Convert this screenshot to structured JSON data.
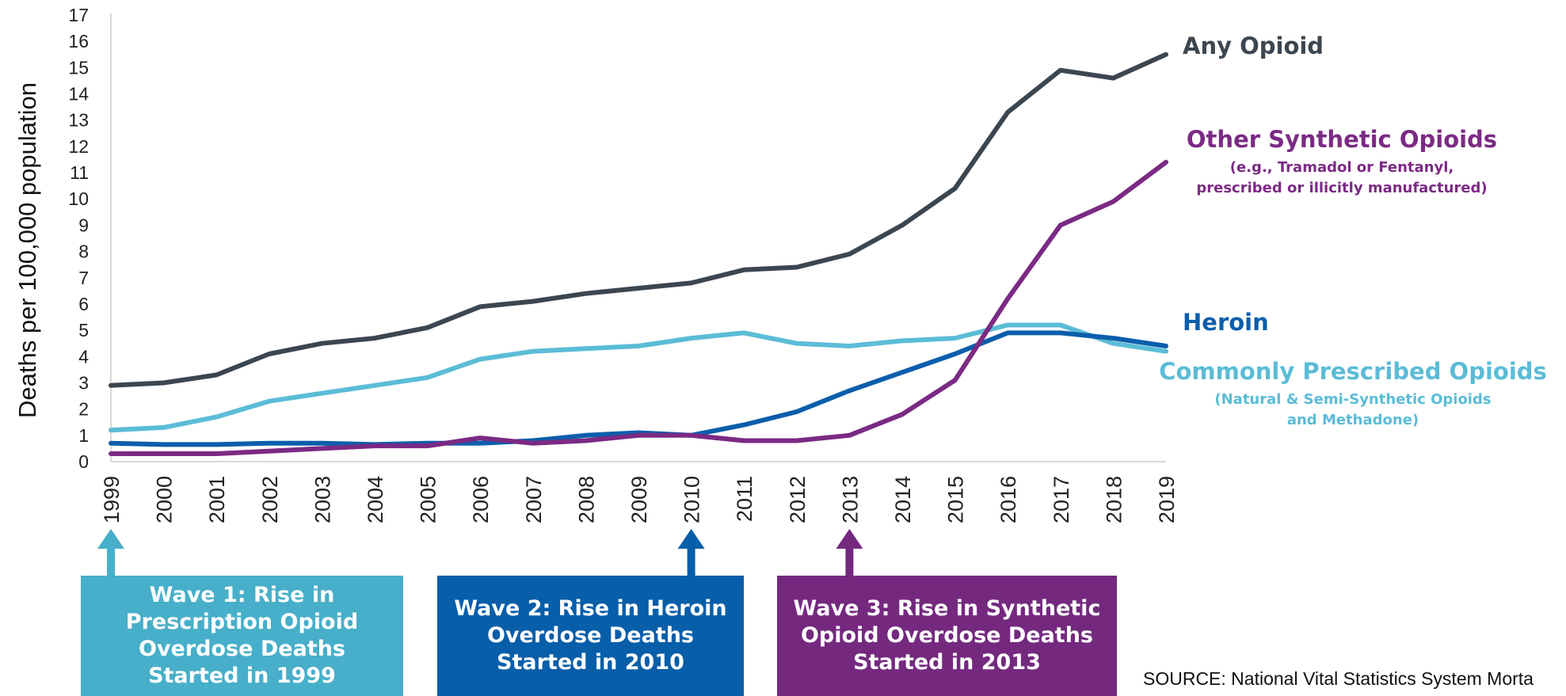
{
  "chart_data": {
    "type": "line",
    "ylabel": "Deaths per 100,000 population",
    "xlabel": "",
    "ylim": [
      0,
      17
    ],
    "yticks": [
      "0",
      "1",
      "2",
      "3",
      "4",
      "5",
      "6",
      "7",
      "8",
      "9",
      "10",
      "11",
      "12",
      "13",
      "14",
      "15",
      "16",
      "17"
    ],
    "x": [
      "1999",
      "2000",
      "2001",
      "2002",
      "2003",
      "2004",
      "2005",
      "2006",
      "2007",
      "2008",
      "2009",
      "2010",
      "2011",
      "2012",
      "2013",
      "2014",
      "2015",
      "2016",
      "2017",
      "2018",
      "2019"
    ],
    "grid": false,
    "series": [
      {
        "name": "Any Opioid",
        "subtitle": "",
        "color": "#3b4650",
        "values": [
          2.9,
          3.0,
          3.3,
          4.1,
          4.5,
          4.7,
          5.1,
          5.9,
          6.1,
          6.4,
          6.6,
          6.8,
          7.3,
          7.4,
          7.9,
          9.0,
          10.4,
          13.3,
          14.9,
          14.6,
          15.5
        ]
      },
      {
        "name": "Other Synthetic Opioids",
        "subtitle": "(e.g., Tramadol or Fentanyl,",
        "subtitle2": "prescribed or illicitly manufactured)",
        "color": "#7b2a84",
        "values": [
          0.3,
          0.3,
          0.3,
          0.4,
          0.5,
          0.6,
          0.6,
          0.9,
          0.7,
          0.8,
          1.0,
          1.0,
          0.8,
          0.8,
          1.0,
          1.8,
          3.1,
          6.2,
          9.0,
          9.9,
          11.4
        ]
      },
      {
        "name": "Heroin",
        "subtitle": "",
        "color": "#0b5eab",
        "values": [
          0.7,
          0.65,
          0.65,
          0.7,
          0.7,
          0.65,
          0.7,
          0.7,
          0.8,
          1.0,
          1.1,
          1.0,
          1.4,
          1.9,
          2.7,
          3.4,
          4.1,
          4.9,
          4.9,
          4.7,
          4.4
        ]
      },
      {
        "name": "Commonly Prescribed Opioids",
        "subtitle": "(Natural & Semi-Synthetic Opioids",
        "subtitle2": "and Methadone)",
        "color": "#5bbcd6",
        "values": [
          1.2,
          1.3,
          1.7,
          2.3,
          2.6,
          2.9,
          3.2,
          3.9,
          4.2,
          4.3,
          4.4,
          4.7,
          4.9,
          4.5,
          4.4,
          4.6,
          4.7,
          5.2,
          5.2,
          4.5,
          4.2
        ]
      }
    ],
    "annotations": [
      {
        "text_lines": [
          "Wave 1: Rise in",
          "Prescription Opioid",
          "Overdose Deaths",
          "Started in 1999"
        ],
        "year": "1999",
        "color": "#47afc9"
      },
      {
        "text_lines": [
          "Wave 2: Rise in Heroin",
          "Overdose Deaths",
          "Started in 2010"
        ],
        "year": "2010",
        "color": "#075ea9"
      },
      {
        "text_lines": [
          "Wave 3: Rise in Synthetic",
          "Opioid Overdose Deaths",
          "Started in 2013"
        ],
        "year": "2013",
        "color": "#74297f"
      }
    ],
    "source": "SOURCE: National Vital Statistics System Morta"
  }
}
